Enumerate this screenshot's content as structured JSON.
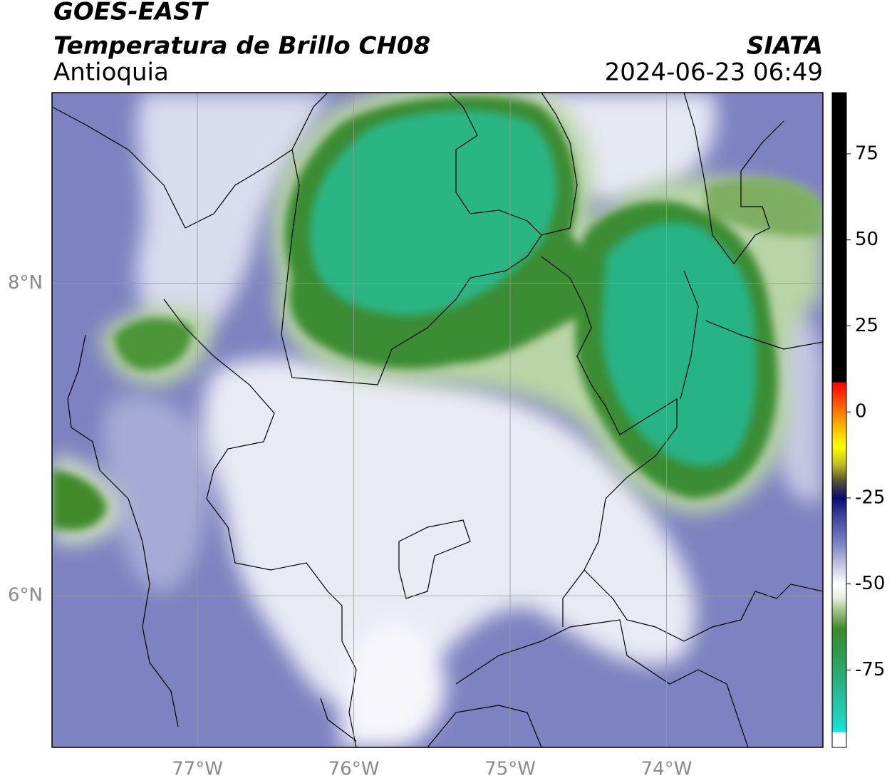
{
  "header": {
    "title": "GOES-EAST",
    "subtitle": "Temperatura de Brillo CH08",
    "region": "Antioquia",
    "source": "SIATA",
    "timestamp": "2024-06-23 06:49"
  },
  "map": {
    "xlim": [
      -77.93,
      -73.0
    ],
    "ylim": [
      5.03,
      9.22
    ],
    "xticks": [
      {
        "value": -77,
        "label": "77°W"
      },
      {
        "value": -76,
        "label": "76°W"
      },
      {
        "value": -75,
        "label": "75°W"
      },
      {
        "value": -74,
        "label": "74°W"
      }
    ],
    "yticks": [
      {
        "value": 6,
        "label": "6°N"
      },
      {
        "value": 8,
        "label": "8°N"
      }
    ],
    "grid": true
  },
  "colorbar": {
    "lim": [
      -97.5,
      92.8
    ],
    "ticks": [
      -75,
      -50,
      -25,
      0,
      25,
      50,
      75
    ],
    "stops": [
      {
        "value": -97.5,
        "color": "#ffffff"
      },
      {
        "value": -93.2,
        "color": "#ffffff"
      },
      {
        "value": -93,
        "color": "#12e6e0"
      },
      {
        "value": -89,
        "color": "#1cd4bd"
      },
      {
        "value": -80,
        "color": "#2ab58c"
      },
      {
        "value": -70,
        "color": "#2e9a4c"
      },
      {
        "value": -63,
        "color": "#3f8a2c"
      },
      {
        "value": -58,
        "color": "#9cc07f"
      },
      {
        "value": -54,
        "color": "#e8efe1"
      },
      {
        "value": -50,
        "color": "#ffffff"
      },
      {
        "value": -45,
        "color": "#c8cbe3"
      },
      {
        "value": -38,
        "color": "#7a80c2"
      },
      {
        "value": -30,
        "color": "#3a3f9a"
      },
      {
        "value": -25,
        "color": "#0a0a70"
      },
      {
        "value": -20,
        "color": "#555530"
      },
      {
        "value": -15,
        "color": "#c8c020"
      },
      {
        "value": -10,
        "color": "#ffff00"
      },
      {
        "value": -3,
        "color": "#ffa500"
      },
      {
        "value": 4,
        "color": "#ff4000"
      },
      {
        "value": 8.5,
        "color": "#ff0000"
      },
      {
        "value": 8.7,
        "color": "#000000"
      },
      {
        "value": 92.8,
        "color": "#000000"
      }
    ]
  }
}
